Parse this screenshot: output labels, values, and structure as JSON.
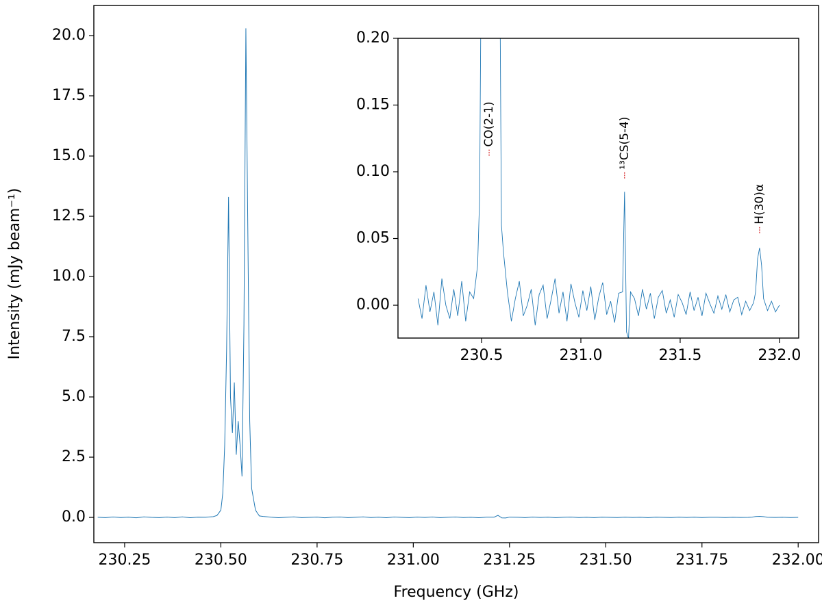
{
  "chart_data": [
    {
      "type": "line",
      "xlabel": "Frequency (GHz)",
      "ylabel": "Intensity (mJy beam⁻¹)",
      "x": [
        230.18,
        230.2,
        230.22,
        230.24,
        230.26,
        230.28,
        230.3,
        230.32,
        230.34,
        230.36,
        230.38,
        230.4,
        230.42,
        230.44,
        230.46,
        230.48,
        230.49,
        230.5,
        230.505,
        230.51,
        230.515,
        230.52,
        230.525,
        230.53,
        230.535,
        230.54,
        230.545,
        230.55,
        230.555,
        230.56,
        230.565,
        230.57,
        230.575,
        230.58,
        230.59,
        230.6,
        230.61,
        230.63,
        230.65,
        230.67,
        230.69,
        230.71,
        230.73,
        230.75,
        230.77,
        230.79,
        230.81,
        230.83,
        230.85,
        230.87,
        230.89,
        230.91,
        230.93,
        230.95,
        230.97,
        230.99,
        231.01,
        231.03,
        231.05,
        231.07,
        231.09,
        231.11,
        231.13,
        231.15,
        231.17,
        231.19,
        231.21,
        231.22,
        231.23,
        231.24,
        231.25,
        231.27,
        231.29,
        231.31,
        231.33,
        231.35,
        231.37,
        231.39,
        231.41,
        231.43,
        231.45,
        231.47,
        231.49,
        231.51,
        231.53,
        231.55,
        231.57,
        231.59,
        231.61,
        231.63,
        231.65,
        231.67,
        231.69,
        231.71,
        231.73,
        231.75,
        231.77,
        231.79,
        231.81,
        231.83,
        231.85,
        231.87,
        231.88,
        231.89,
        231.9,
        231.91,
        231.92,
        231.94,
        231.96,
        231.98,
        232.0
      ],
      "series": [
        {
          "color": "#1f77b4",
          "values": [
            0.005,
            -0.01,
            0.015,
            -0.005,
            0.01,
            -0.015,
            0.02,
            0.0,
            -0.01,
            0.012,
            -0.008,
            0.018,
            -0.012,
            0.01,
            0.005,
            0.03,
            0.08,
            0.3,
            1.0,
            3.0,
            7.0,
            13.3,
            5.0,
            3.5,
            5.6,
            2.6,
            4.0,
            3.0,
            1.7,
            8.0,
            20.3,
            12.0,
            4.0,
            1.2,
            0.3,
            0.06,
            0.04,
            0.01,
            -0.012,
            0.005,
            0.018,
            -0.008,
            0.0,
            0.012,
            -0.015,
            0.008,
            0.015,
            -0.01,
            0.004,
            0.02,
            -0.006,
            0.01,
            -0.012,
            0.016,
            0.002,
            -0.009,
            0.011,
            -0.004,
            0.014,
            -0.011,
            0.006,
            0.017,
            -0.007,
            0.003,
            -0.013,
            0.009,
            0.01,
            0.085,
            -0.02,
            -0.025,
            0.01,
            0.005,
            -0.008,
            0.012,
            -0.003,
            0.009,
            -0.01,
            0.006,
            0.011,
            -0.006,
            0.004,
            -0.009,
            0.008,
            0.002,
            -0.007,
            0.01,
            -0.004,
            0.006,
            -0.008,
            0.009,
            0.001,
            -0.006,
            0.007,
            -0.003,
            0.008,
            -0.005,
            0.004,
            0.006,
            -0.007,
            0.003,
            -0.004,
            0.002,
            0.01,
            0.035,
            0.043,
            0.03,
            0.005,
            -0.004,
            0.003,
            -0.005,
            0.0
          ]
        }
      ],
      "xlim": [
        230.17,
        232.053
      ],
      "ylim": [
        -1.05,
        21.25
      ],
      "xticks": [
        230.25,
        {
          "value": 230.5,
          "label": "230.50"
        },
        230.75,
        {
          "value": 231,
          "label": "231.00"
        },
        231.25,
        {
          "value": 231.5,
          "label": "231.50"
        },
        231.75,
        {
          "value": 232,
          "label": "232.00"
        }
      ],
      "yticks": [
        {
          "value": 0,
          "label": "0.0"
        },
        2.5,
        {
          "value": 5,
          "label": "5.0"
        },
        7.5,
        {
          "value": 10,
          "label": "10.0"
        },
        12.5,
        {
          "value": 15,
          "label": "15.0"
        },
        17.5,
        {
          "value": 20,
          "label": "20.0"
        }
      ]
    },
    {
      "type": "inset",
      "xlim": [
        230.079,
        232.097
      ],
      "ylim": [
        -0.0246,
        0.2
      ],
      "xticks": [
        230.5,
        {
          "value": 231,
          "label": "231.0"
        },
        231.5,
        {
          "value": 232,
          "label": "232.0"
        }
      ],
      "yticks": [
        {
          "value": 0,
          "label": "0.00"
        },
        0.05,
        {
          "value": 0.1,
          "label": "0.10"
        },
        0.15,
        {
          "value": 0.2,
          "label": "0.20"
        }
      ],
      "annotations": [
        {
          "text": "CO(2-1)",
          "x": 230.538,
          "y": 0.112
        },
        {
          "text": "¹³CS(5-4)",
          "x": 231.22,
          "y": 0.095
        },
        {
          "text": "H(30)α",
          "x": 231.9,
          "y": 0.054
        }
      ]
    }
  ]
}
